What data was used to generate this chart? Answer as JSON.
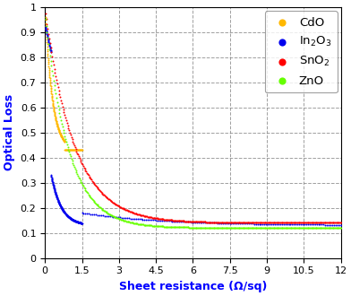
{
  "title": "",
  "xlabel": "Sheet resistance (Ω/sq)",
  "ylabel": "Optical Loss",
  "xlim": [
    0,
    12
  ],
  "ylim": [
    0,
    1.0
  ],
  "xticks": [
    0,
    1.5,
    3,
    4.5,
    6,
    7.5,
    9,
    10.5,
    12
  ],
  "yticks": [
    0,
    0.1,
    0.2,
    0.3,
    0.4,
    0.5,
    0.6,
    0.7,
    0.8,
    0.9,
    1.0
  ],
  "xlabel_color": "#0000FF",
  "ylabel_color": "#0000FF",
  "background_color": "#FFFFFF",
  "grid_color": "#888888",
  "legend_colors": [
    "#FFB800",
    "#0000EE",
    "#FF0000",
    "#66FF00"
  ],
  "markersize_dense": 2.5,
  "markersize_sparse": 7
}
